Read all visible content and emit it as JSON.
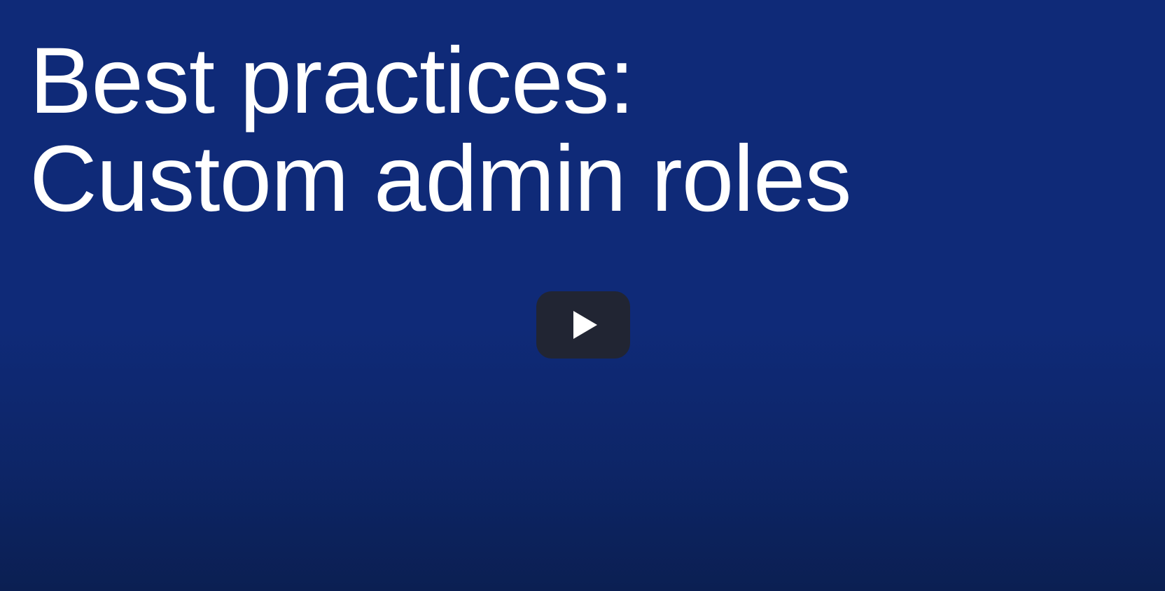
{
  "video": {
    "title_lines": [
      "Best practices:",
      "Custom admin roles"
    ],
    "play_icon": "play-icon",
    "colors": {
      "background": "#0f2a78",
      "background_bottom": "#0b1f52",
      "title_text": "#ffffff",
      "play_button": "#212533",
      "play_glyph": "#ffffff"
    }
  }
}
